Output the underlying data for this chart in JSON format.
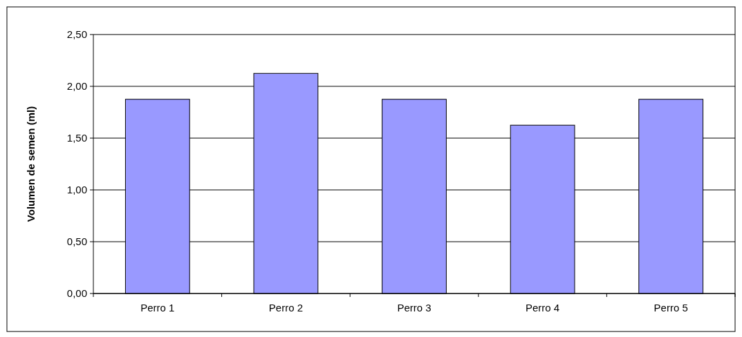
{
  "chart_data": {
    "type": "bar",
    "ylabel": "Volumen de semen (ml)",
    "categories": [
      "Perro 1",
      "Perro 2",
      "Perro 3",
      "Perro 4",
      "Perro 5"
    ],
    "values": [
      1.875,
      2.125,
      1.875,
      1.625,
      1.875
    ],
    "color": "#9999ff",
    "ylim": [
      0,
      2.5
    ],
    "yticks": [
      {
        "value": 0,
        "label": "0,00"
      },
      {
        "value": 0.5,
        "label": "0,50"
      },
      {
        "value": 1,
        "label": "1,00"
      },
      {
        "value": 1.5,
        "label": "1,50"
      },
      {
        "value": 2,
        "label": "2,00"
      },
      {
        "value": 2.5,
        "label": "2,50"
      }
    ],
    "grid": "y"
  }
}
